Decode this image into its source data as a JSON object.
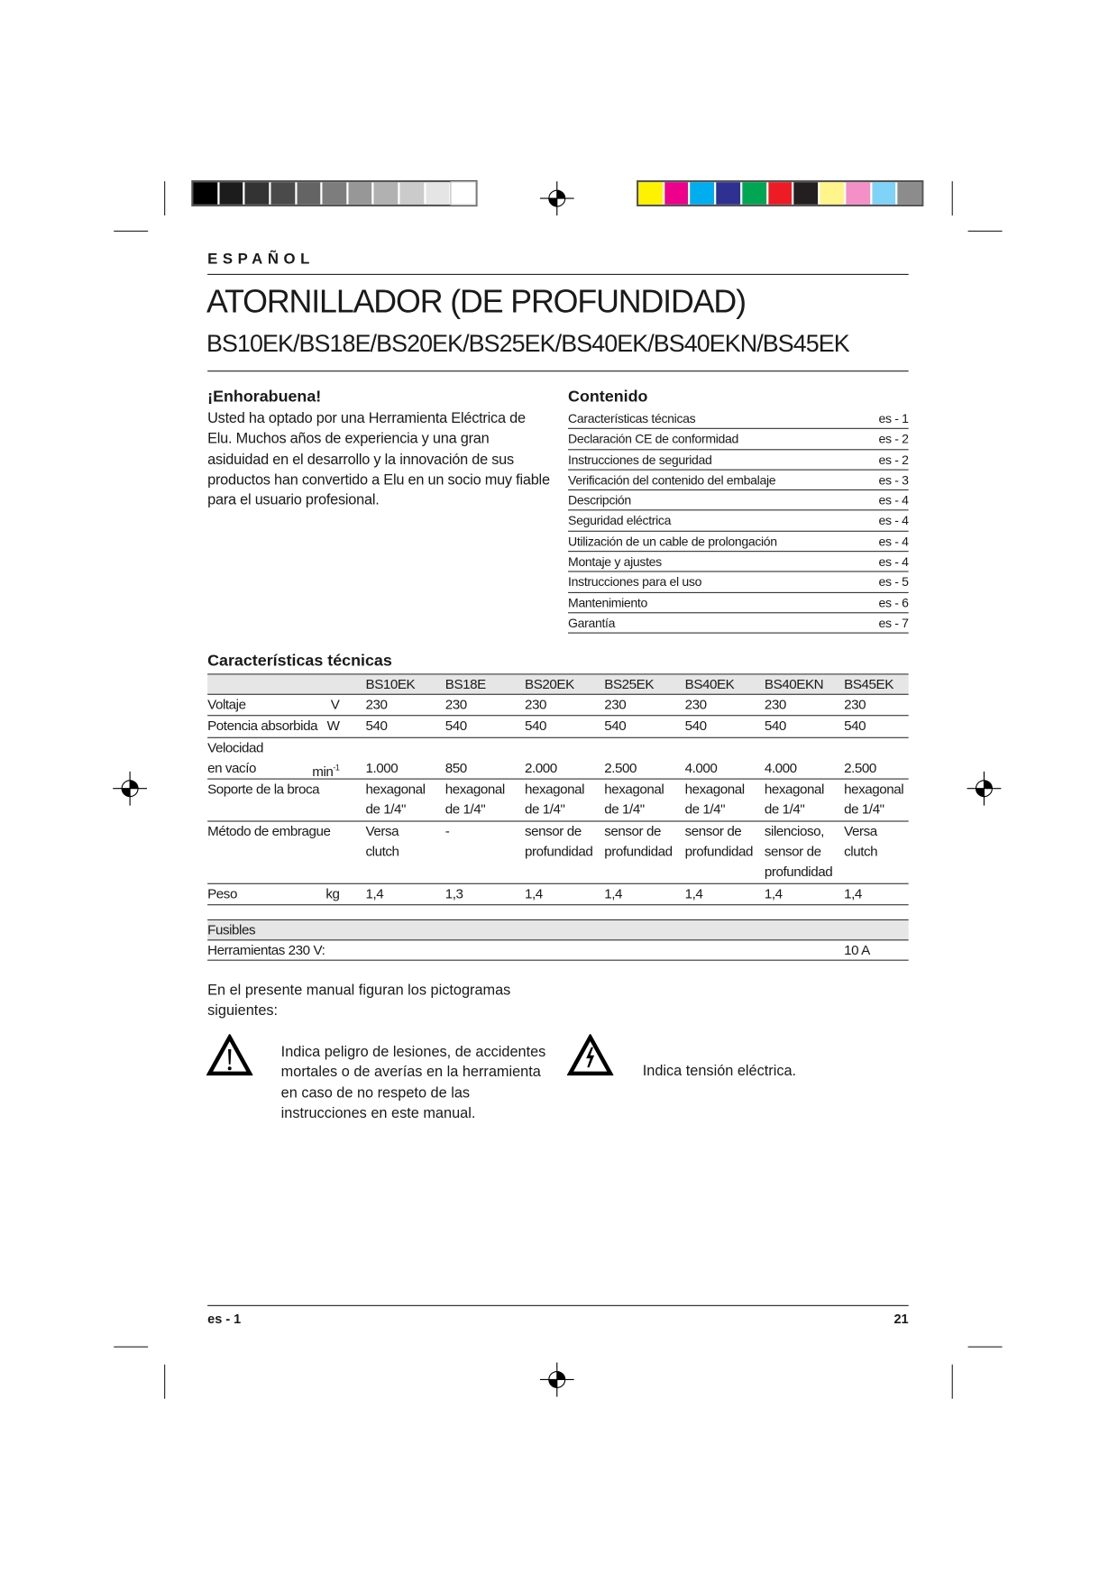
{
  "print_marks": {
    "grayscale": [
      "#000000",
      "#1c1c1c",
      "#333333",
      "#4a4a4a",
      "#646464",
      "#7d7d7d",
      "#979797",
      "#b1b1b1",
      "#cbcbcb",
      "#e5e5e5",
      "#ffffff"
    ],
    "colors": [
      "#fff200",
      "#ec008c",
      "#00aeef",
      "#2e3192",
      "#00a651",
      "#ed1c24",
      "#231f20",
      "#fff58a",
      "#f48fc7",
      "#7fd3f7",
      "#8c8c8c"
    ]
  },
  "header": {
    "language": "ESPAÑOL",
    "title": "ATORNILLADOR (DE PROFUNDIDAD)",
    "models": "BS10EK/BS18E/BS20EK/BS25EK/BS40EK/BS40EKN/BS45EK"
  },
  "intro": {
    "heading": "¡Enhorabuena!",
    "text": "Usted ha optado por una Herramienta Eléctrica de Elu. Muchos años de experiencia y una gran asiduidad en el desarrollo y la innovación de sus productos han convertido a Elu en un socio muy fiable para el usuario profesional."
  },
  "contents": {
    "heading": "Contenido",
    "items": [
      {
        "label": "Características técnicas",
        "page": "es - 1"
      },
      {
        "label": "Declaración CE de conformidad",
        "page": "es - 2"
      },
      {
        "label": "Instrucciones de seguridad",
        "page": "es - 2"
      },
      {
        "label": "Verificación del contenido del embalaje",
        "page": "es - 3"
      },
      {
        "label": "Descripción",
        "page": "es - 4"
      },
      {
        "label": "Seguridad eléctrica",
        "page": "es - 4"
      },
      {
        "label": "Utilización de un cable de prolongación",
        "page": "es - 4"
      },
      {
        "label": "Montaje y ajustes",
        "page": "es - 4"
      },
      {
        "label": "Instrucciones para el uso",
        "page": "es - 5"
      },
      {
        "label": "Mantenimiento",
        "page": "es - 6"
      },
      {
        "label": "Garantía",
        "page": "es - 7"
      }
    ]
  },
  "specs": {
    "heading": "Características técnicas",
    "columns": [
      "BS10EK",
      "BS18E",
      "BS20EK",
      "BS25EK",
      "BS40EK",
      "BS40EKN",
      "BS45EK"
    ],
    "rows": [
      {
        "label": [
          "Voltaje"
        ],
        "unit": "V",
        "values": [
          [
            "230"
          ],
          [
            "230"
          ],
          [
            "230"
          ],
          [
            "230"
          ],
          [
            "230"
          ],
          [
            "230"
          ],
          [
            "230"
          ]
        ]
      },
      {
        "label": [
          "Potencia absorbida"
        ],
        "unit": "W",
        "values": [
          [
            "540"
          ],
          [
            "540"
          ],
          [
            "540"
          ],
          [
            "540"
          ],
          [
            "540"
          ],
          [
            "540"
          ],
          [
            "540"
          ]
        ]
      },
      {
        "label": [
          "Velocidad",
          "en vacío"
        ],
        "unit": "min-1",
        "values": [
          [
            "",
            "1.000"
          ],
          [
            "",
            "850"
          ],
          [
            "",
            "2.000"
          ],
          [
            "",
            "2.500"
          ],
          [
            "",
            "4.000"
          ],
          [
            "",
            "4.000"
          ],
          [
            "",
            "2.500"
          ]
        ]
      },
      {
        "label": [
          "Soporte de la broca"
        ],
        "unit": "",
        "values": [
          [
            "hexagonal",
            "de 1/4\""
          ],
          [
            "hexagonal",
            "de 1/4\""
          ],
          [
            "hexagonal",
            "de 1/4\""
          ],
          [
            "hexagonal",
            "de 1/4\""
          ],
          [
            "hexagonal",
            "de 1/4\""
          ],
          [
            "hexagonal",
            "de 1/4\""
          ],
          [
            "hexagonal",
            "de 1/4\""
          ]
        ]
      },
      {
        "label": [
          "Método de embrague"
        ],
        "unit": "",
        "values": [
          [
            "Versa",
            "clutch"
          ],
          [
            "-"
          ],
          [
            "sensor de",
            "profundidad"
          ],
          [
            "sensor de",
            "profundidad"
          ],
          [
            "sensor de",
            "profundidad"
          ],
          [
            "silencioso,",
            "sensor de",
            "profundidad"
          ],
          [
            "Versa",
            "clutch"
          ]
        ]
      },
      {
        "label": [
          "Peso"
        ],
        "unit": "kg",
        "values": [
          [
            "1,4"
          ],
          [
            "1,3"
          ],
          [
            "1,4"
          ],
          [
            "1,4"
          ],
          [
            "1,4"
          ],
          [
            "1,4"
          ],
          [
            "1,4"
          ]
        ]
      }
    ]
  },
  "fuses": {
    "heading": "Fusibles",
    "label": "Herramientas 230 V:",
    "value": "10 A"
  },
  "pictograms": {
    "intro": "En el presente manual figuran los pictogramas siguientes:",
    "items": [
      {
        "icon": "warning-triangle-icon",
        "text": "Indica peligro de lesiones, de accidentes mortales o de averías en la herramienta en caso de no respeto de las instrucciones en este manual."
      },
      {
        "icon": "electric-hazard-icon",
        "text": "Indica tensión eléctrica."
      }
    ]
  },
  "footer": {
    "left": "es - 1",
    "right": "21"
  }
}
